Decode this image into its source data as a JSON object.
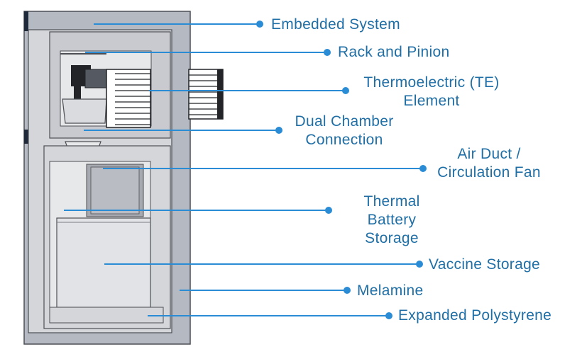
{
  "colors": {
    "line": "#2b8cd6",
    "label": "#1f6fa6",
    "outer_shell": "#b4b9c2",
    "inner_shell": "#d4d6da",
    "interior": "#e7e8ea",
    "outline": "#4d4f54",
    "dark_accent": "#1e2a3a",
    "fin": "#222428"
  },
  "labels": {
    "embedded_system": "Embedded System",
    "rack_and_pinion": "Rack and Pinion",
    "te_element_1": "Thermoelectric (TE)",
    "te_element_2": "Element",
    "dual_chamber_1": "Dual Chamber",
    "dual_chamber_2": "Connection",
    "air_duct_1": "Air Duct /",
    "air_duct_2": "Circulation Fan",
    "thermal_battery_1": "Thermal",
    "thermal_battery_2": "Battery",
    "thermal_battery_3": "Storage",
    "vaccine_storage": "Vaccine Storage",
    "melamine": "Melamine",
    "expanded_polystyrene": "Expanded Polystyrene"
  }
}
